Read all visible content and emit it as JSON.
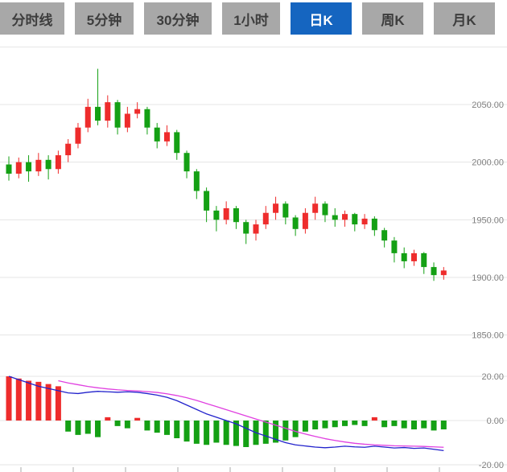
{
  "tabbar": {
    "tabs": [
      {
        "label": "分时线",
        "selected": false
      },
      {
        "label": "5分钟",
        "selected": false
      },
      {
        "label": "30分钟",
        "selected": false
      },
      {
        "label": "1小时",
        "selected": false
      },
      {
        "label": "日K",
        "selected": true
      },
      {
        "label": "周K",
        "selected": false
      },
      {
        "label": "月K",
        "selected": false
      }
    ]
  },
  "colors": {
    "up": "#ee2c2c",
    "down": "#14a014",
    "dif_line": "#2222cc",
    "dea_line": "#e040e0",
    "grid": "#e4e4e4",
    "axis_text": "#808080",
    "tick": "#aaaaaa",
    "tab_bg": "#a8a8a8",
    "tab_text": "#3d3d3d",
    "tab_selected_bg": "#1565c0",
    "tab_selected_text": "#ffffff"
  },
  "chart_data": {
    "type": "candlestick_with_macd",
    "title": "",
    "price_axis": {
      "side": "right",
      "gridline_values": [
        2100,
        2050,
        2000,
        1950,
        1900,
        1850
      ],
      "labels": [
        {
          "text": "2050.00",
          "value": 2050
        },
        {
          "text": "2000.00",
          "value": 2000
        },
        {
          "text": "1950.00",
          "value": 1950
        },
        {
          "text": "1900.00",
          "value": 1900
        },
        {
          "text": "1850.00",
          "value": 1850
        }
      ]
    },
    "macd_axis": {
      "side": "right",
      "gridline_values": [
        20,
        0,
        -20
      ],
      "labels": [
        {
          "text": "20.00",
          "value": 20
        },
        {
          "text": "0.00",
          "value": 0
        },
        {
          "text": "-20.00",
          "value": -20
        }
      ]
    },
    "candles_ohlc": [
      [
        1998,
        2005,
        1984,
        1990
      ],
      [
        1990,
        2004,
        1986,
        2000
      ],
      [
        2000,
        2006,
        1983,
        1992
      ],
      [
        1992,
        2008,
        1988,
        2002
      ],
      [
        2002,
        2006,
        1985,
        1994
      ],
      [
        1994,
        2010,
        1990,
        2006
      ],
      [
        2006,
        2020,
        2000,
        2016
      ],
      [
        2016,
        2034,
        2012,
        2030
      ],
      [
        2030,
        2055,
        2026,
        2048
      ],
      [
        2048,
        2081,
        2032,
        2036
      ],
      [
        2036,
        2058,
        2030,
        2052
      ],
      [
        2052,
        2054,
        2024,
        2030
      ],
      [
        2030,
        2048,
        2026,
        2042
      ],
      [
        2042,
        2052,
        2038,
        2046
      ],
      [
        2046,
        2048,
        2024,
        2030
      ],
      [
        2030,
        2034,
        2012,
        2018
      ],
      [
        2018,
        2032,
        2014,
        2026
      ],
      [
        2026,
        2028,
        2002,
        2008
      ],
      [
        2008,
        2010,
        1986,
        1992
      ],
      [
        1992,
        1994,
        1968,
        1975
      ],
      [
        1975,
        1978,
        1948,
        1958
      ],
      [
        1958,
        1962,
        1940,
        1950
      ],
      [
        1950,
        1966,
        1946,
        1960
      ],
      [
        1960,
        1962,
        1942,
        1948
      ],
      [
        1948,
        1950,
        1929,
        1938
      ],
      [
        1938,
        1950,
        1932,
        1946
      ],
      [
        1946,
        1962,
        1942,
        1956
      ],
      [
        1956,
        1970,
        1950,
        1964
      ],
      [
        1964,
        1966,
        1946,
        1952
      ],
      [
        1952,
        1954,
        1936,
        1942
      ],
      [
        1942,
        1960,
        1938,
        1956
      ],
      [
        1956,
        1970,
        1950,
        1964
      ],
      [
        1964,
        1966,
        1948,
        1954
      ],
      [
        1954,
        1960,
        1944,
        1950
      ],
      [
        1950,
        1958,
        1944,
        1955
      ],
      [
        1955,
        1956,
        1940,
        1946
      ],
      [
        1946,
        1955,
        1942,
        1951
      ],
      [
        1951,
        1953,
        1936,
        1941
      ],
      [
        1941,
        1943,
        1926,
        1932
      ],
      [
        1932,
        1935,
        1913,
        1921
      ],
      [
        1921,
        1926,
        1908,
        1914
      ],
      [
        1914,
        1924,
        1910,
        1921
      ],
      [
        1921,
        1922,
        1903,
        1909
      ],
      [
        1909,
        1913,
        1897,
        1902
      ],
      [
        1902,
        1909,
        1898,
        1906
      ]
    ],
    "macd": {
      "hist": [
        20,
        19,
        18,
        17.5,
        16.5,
        15.5,
        -5,
        -6.5,
        -6,
        -7.5,
        1.5,
        -2.5,
        -3.5,
        1.2,
        -4.5,
        -5.5,
        -6.5,
        -8,
        -9.5,
        -10.5,
        -11,
        -10,
        -11,
        -11.5,
        -12,
        -11,
        -10.5,
        -10,
        -9,
        -7.5,
        -5,
        -4,
        -3.5,
        -3,
        -2.5,
        -2,
        -2.5,
        1.5,
        -3,
        -2.5,
        -3.5,
        -4,
        -3.5,
        -4.5,
        -4
      ],
      "dif": [
        20,
        18.5,
        17,
        15.5,
        14.5,
        13.5,
        12.5,
        12.2,
        12.8,
        13.2,
        13.0,
        12.8,
        13.0,
        12.8,
        12.2,
        11.5,
        10.5,
        9.0,
        7.0,
        5.0,
        3.0,
        1.5,
        0.0,
        -1.5,
        -3.5,
        -5.5,
        -7.0,
        -8.5,
        -10.0,
        -11.0,
        -11.5,
        -12.0,
        -12.3,
        -12.0,
        -11.6,
        -11.9,
        -12.1,
        -11.6,
        -12.0,
        -12.4,
        -12.2,
        -12.6,
        -12.4,
        -13.0,
        -13.6
      ],
      "dea": [
        null,
        null,
        null,
        null,
        null,
        18.0,
        17.0,
        16.2,
        15.4,
        14.8,
        14.3,
        13.9,
        13.6,
        13.4,
        13.1,
        12.7,
        12.1,
        11.3,
        10.3,
        9.1,
        7.7,
        6.3,
        4.9,
        3.5,
        2.1,
        0.7,
        -0.7,
        -2.1,
        -3.5,
        -4.9,
        -6.1,
        -7.2,
        -8.2,
        -9.0,
        -9.7,
        -10.3,
        -10.7,
        -11.0,
        -11.2,
        -11.4,
        -11.5,
        -11.6,
        -11.7,
        -11.9,
        -12.1
      ]
    },
    "layout_hints": {
      "grid": "horizontal-only",
      "up_color_convention": "red-up-green-down",
      "legend": "none"
    }
  }
}
